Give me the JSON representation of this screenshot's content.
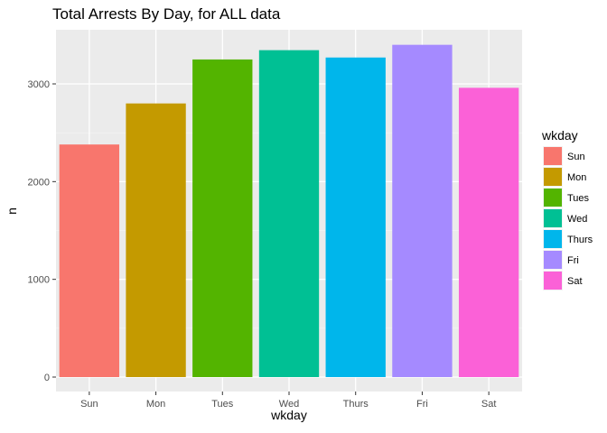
{
  "chart_data": {
    "type": "bar",
    "title": "Total Arrests By Day, for ALL data",
    "xlabel": "wkday",
    "ylabel": "n",
    "categories": [
      "Sun",
      "Mon",
      "Tues",
      "Wed",
      "Thurs",
      "Fri",
      "Sat"
    ],
    "values": [
      2380,
      2800,
      3250,
      3345,
      3270,
      3400,
      2960
    ],
    "colors": [
      "#F8766D",
      "#C49A00",
      "#53B400",
      "#00C094",
      "#00B6EB",
      "#A58AFF",
      "#FB61D7"
    ],
    "ylim": [
      0,
      3500
    ],
    "yticks": [
      0,
      1000,
      2000,
      3000
    ],
    "ytick_labels": [
      "0",
      "1000",
      "2000",
      "3000"
    ],
    "grid": true,
    "panel_background": "#EBEBEB",
    "legend": {
      "title": "wkday",
      "position": "right",
      "entries": [
        "Sun",
        "Mon",
        "Tues",
        "Wed",
        "Thurs",
        "Fri",
        "Sat"
      ]
    }
  }
}
